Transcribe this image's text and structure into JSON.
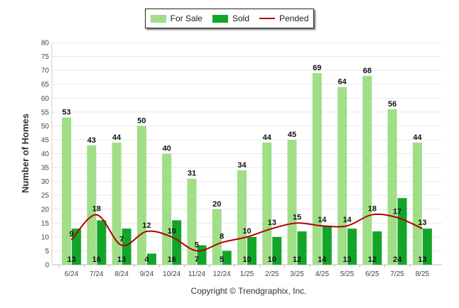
{
  "legend": {
    "for_sale": "For Sale",
    "sold": "Sold",
    "pended": "Pended"
  },
  "ylabel": "Number of Homes",
  "copyright": "Copyright © Trendgraphix, Inc.",
  "colors": {
    "for_sale": "#a0de87",
    "sold": "#13a52a",
    "pended": "#b30000",
    "grid": "#e8e8e8",
    "axis_text": "#444444"
  },
  "chart_data": {
    "type": "bar",
    "categories": [
      "6/24",
      "7/24",
      "8/24",
      "9/24",
      "10/24",
      "11/24",
      "12/24",
      "1/25",
      "2/25",
      "3/25",
      "4/25",
      "5/25",
      "6/25",
      "7/25",
      "8/25"
    ],
    "series": [
      {
        "name": "For Sale",
        "type": "bar",
        "values": [
          53,
          43,
          44,
          50,
          40,
          31,
          20,
          34,
          44,
          45,
          69,
          64,
          68,
          56,
          44
        ]
      },
      {
        "name": "Sold",
        "type": "bar",
        "values": [
          13,
          16,
          13,
          4,
          16,
          7,
          5,
          10,
          10,
          12,
          14,
          13,
          12,
          24,
          13
        ]
      },
      {
        "name": "Pended",
        "type": "line",
        "values": [
          9,
          18,
          7,
          12,
          10,
          5,
          8,
          10,
          13,
          15,
          14,
          14,
          18,
          17,
          13
        ]
      }
    ],
    "ylabel": "Number of Homes",
    "xlabel": "",
    "ylim": [
      0,
      80
    ],
    "yticks": [
      0,
      5,
      10,
      15,
      20,
      25,
      30,
      35,
      40,
      45,
      50,
      55,
      60,
      65,
      70,
      75,
      80
    ],
    "grid": true,
    "legend_position": "top"
  }
}
